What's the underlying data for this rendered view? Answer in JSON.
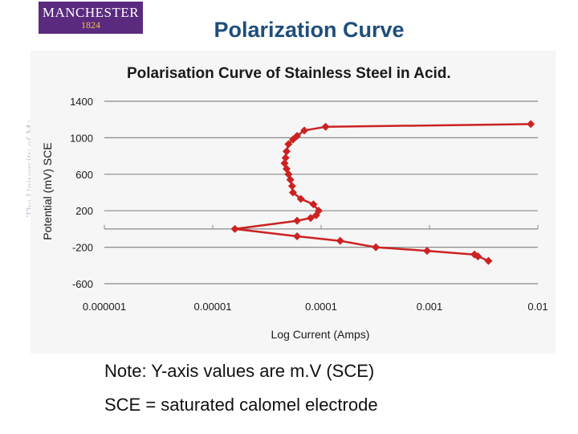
{
  "logo": {
    "name": "MANCHESTER",
    "year": "1824",
    "side_text": "The University of Manchester"
  },
  "slide": {
    "title": "Polarization Curve"
  },
  "notes": {
    "line1": "Note:  Y-axis values are m.V (SCE)",
    "line2": "SCE = saturated calomel electrode"
  },
  "colors": {
    "title": "#1f4e79",
    "series": "#cc2222",
    "logo_bg": "#5a2a7e",
    "logo_year": "#f1c24b"
  },
  "chart_data": {
    "type": "line",
    "title": "Polarisation Curve of Stainless Steel in Acid.",
    "xlabel": "Log Current (Amps)",
    "ylabel": "Potential (mV) SCE",
    "xscale": "log",
    "xlim": [
      1e-06,
      0.01
    ],
    "ylim": [
      -600,
      1400
    ],
    "x_tick_labels": [
      "0.000001",
      "0.00001",
      "0.0001",
      "0.001",
      "0.01"
    ],
    "x_ticks": [
      1e-06,
      1e-05,
      0.0001,
      0.001,
      0.01
    ],
    "y_tick_labels": [
      "1400",
      "1000",
      "600",
      "200",
      "-200",
      "-600"
    ],
    "y_ticks": [
      1400,
      1000,
      600,
      200,
      -200,
      -600
    ],
    "grid": "horizontal",
    "legend": "none",
    "series": [
      {
        "x": [
          0.0086,
          0.00011,
          7e-05,
          6e-05,
          5.5e-05,
          5e-05,
          4.8e-05,
          4.7e-05,
          4.6e-05,
          4.8e-05,
          5e-05,
          5.2e-05,
          5.4e-05,
          5.5e-05,
          6.5e-05,
          8.5e-05,
          9.5e-05,
          9e-05,
          8e-05,
          6e-05,
          1.6e-05,
          6e-05,
          0.00015,
          0.00032,
          0.00095,
          0.0026,
          0.0028,
          0.0035
        ],
        "y": [
          1150,
          1120,
          1080,
          1020,
          980,
          930,
          850,
          780,
          720,
          660,
          600,
          540,
          470,
          400,
          330,
          270,
          200,
          150,
          120,
          90,
          0,
          -80,
          -130,
          -200,
          -240,
          -280,
          -300,
          -350
        ]
      }
    ]
  }
}
